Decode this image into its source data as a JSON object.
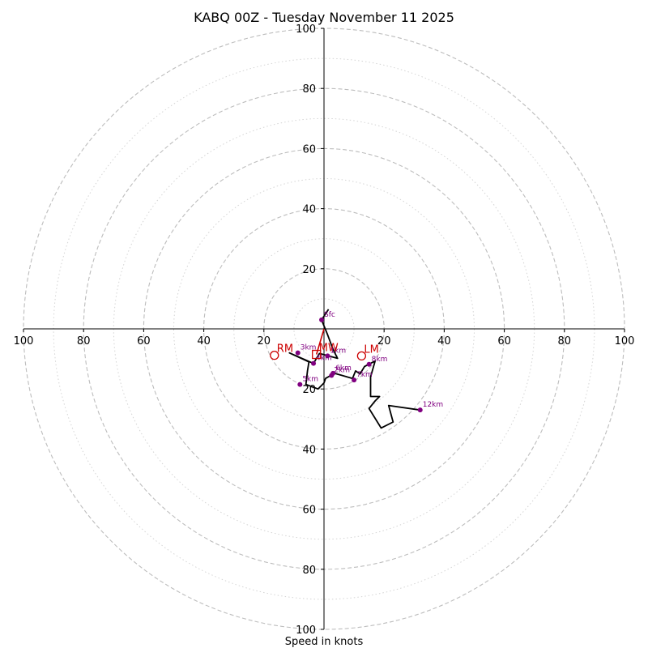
{
  "chart_data": {
    "type": "hodograph",
    "title": "KABQ 00Z - Tuesday November 11 2025",
    "xlabel": "Speed in knots",
    "units": "knots",
    "axis_range": [
      -100,
      100
    ],
    "rings_major": [
      20,
      40,
      60,
      80,
      100
    ],
    "rings_minor": [
      10,
      30,
      50,
      70,
      90
    ],
    "x_tick_labels": [
      "100",
      "80",
      "60",
      "40",
      "20",
      "20",
      "40",
      "60",
      "80",
      "100"
    ],
    "y_tick_labels": [
      "100",
      "80",
      "60",
      "40",
      "20",
      "20",
      "40",
      "60",
      "80",
      "100"
    ],
    "hodograph_trace": [
      [
        1.5,
        6.5
      ],
      [
        -0.8,
        3
      ],
      [
        1.2,
        -2
      ],
      [
        3,
        -6.8
      ],
      [
        4.5,
        -9.8
      ],
      [
        -1.5,
        -8.2
      ],
      [
        -3.5,
        -11.5
      ],
      [
        -11.5,
        -8
      ],
      [
        -5,
        -11
      ],
      [
        -5.5,
        -14
      ],
      [
        -6,
        -18.5
      ],
      [
        -2,
        -20
      ],
      [
        0,
        -18
      ],
      [
        0.5,
        -16.5
      ],
      [
        3.5,
        -14.8
      ],
      [
        6,
        -15.5
      ],
      [
        9.5,
        -16.5
      ],
      [
        10.5,
        -14
      ],
      [
        12,
        -15
      ],
      [
        13.5,
        -12.5
      ],
      [
        17,
        -10.7
      ],
      [
        15.5,
        -16
      ],
      [
        15.5,
        -22.5
      ],
      [
        18.5,
        -22.5
      ],
      [
        17,
        -24
      ],
      [
        15,
        -26.5
      ],
      [
        19,
        -33
      ],
      [
        23,
        -31
      ],
      [
        21.5,
        -25.5
      ],
      [
        32,
        -27
      ]
    ],
    "height_markers": [
      {
        "label": "Sfc",
        "u": -0.8,
        "v": 3
      },
      {
        "label": "1km",
        "u": 1.2,
        "v": -9
      },
      {
        "label": "2km",
        "u": 2.5,
        "v": -15.5
      },
      {
        "label": "3km",
        "u": -8.7,
        "v": -8
      },
      {
        "label": "4km",
        "u": -3.5,
        "v": -11.5
      },
      {
        "label": "5km",
        "u": -8,
        "v": -18.5
      },
      {
        "label": "6km",
        "u": 3,
        "v": -14.8
      },
      {
        "label": "7km",
        "u": 10,
        "v": -17
      },
      {
        "label": "8km",
        "u": 15,
        "v": -11.8
      },
      {
        "label": "12km",
        "u": 32,
        "v": -27
      }
    ],
    "storm_motion": [
      {
        "label": "RM",
        "u": -16.5,
        "v": -8.8,
        "marker": "circle"
      },
      {
        "label": "MW",
        "u": -2.5,
        "v": -8.5,
        "marker": "square"
      },
      {
        "label": "LM",
        "u": 12.5,
        "v": -9,
        "marker": "circle"
      }
    ],
    "shear_vector": {
      "from": [
        0,
        0
      ],
      "to": [
        -2.5,
        -8.5
      ]
    }
  },
  "colors": {
    "trace": "#000000",
    "marker": "#800080",
    "storm_motion": "#cc0000",
    "ring_major": "#bdbdbd",
    "ring_minor": "#d4d4d4"
  }
}
